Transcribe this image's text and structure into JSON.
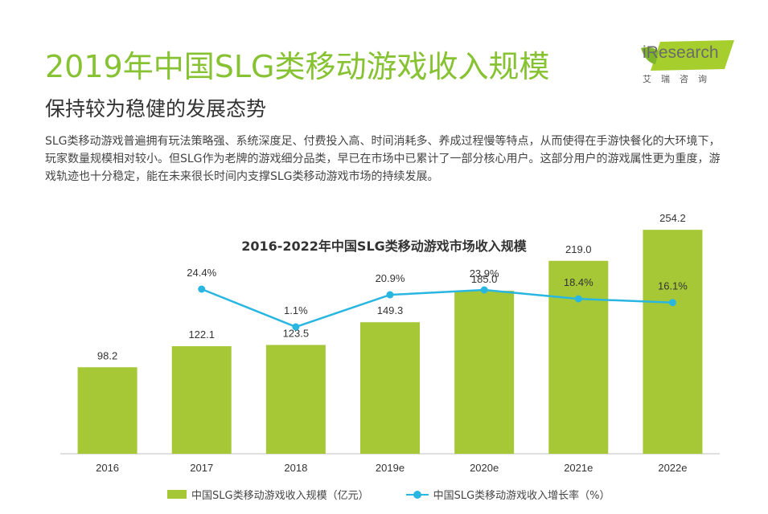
{
  "header": {
    "title": "2019年中国SLG类移动游戏收入规模",
    "subtitle": "保持较为稳健的发展态势",
    "paragraph": "SLG类移动游戏普遍拥有玩法策略强、系统深度足、付费投入高、时间消耗多、养成过程慢等特点，从而使得在手游快餐化的大环境下，玩家数量规模相对较小。但SLG作为老牌的游戏细分品类，早已在市场中已累计了一部分核心用户。这部分用户的游戏属性更为重度，游戏轨迹也十分稳定，能在未来很长时间内支撑SLG类移动游戏市场的持续发展。"
  },
  "logo": {
    "wordmark": "iResearch",
    "chinese": "艾瑞咨询"
  },
  "colors": {
    "title_green": "#86c232",
    "bar": "#a6c837",
    "line": "#29b6e0"
  },
  "chart_data": {
    "type": "bar",
    "title": "2016-2022年中国SLG类移动游戏市场收入规模",
    "categories": [
      "2016",
      "2017",
      "2018",
      "2019e",
      "2020e",
      "2021e",
      "2022e"
    ],
    "series": [
      {
        "name": "中国SLG类移动游戏收入规模（亿元）",
        "type": "bar",
        "values": [
          98.2,
          122.1,
          123.5,
          149.3,
          185.0,
          219.0,
          254.2
        ],
        "labels": [
          "98.2",
          "122.1",
          "123.5",
          "149.3",
          "185.0",
          "219.0",
          "254.2"
        ]
      },
      {
        "name": "中国SLG类移动游戏收入增长率（%）",
        "type": "line",
        "values": [
          null,
          24.4,
          1.1,
          20.9,
          23.9,
          18.4,
          16.1
        ],
        "labels": [
          "",
          "24.4%",
          "1.1%",
          "20.9%",
          "23.9%",
          "18.4%",
          "16.1%"
        ]
      }
    ],
    "legend_position": "bottom",
    "grid": false
  }
}
